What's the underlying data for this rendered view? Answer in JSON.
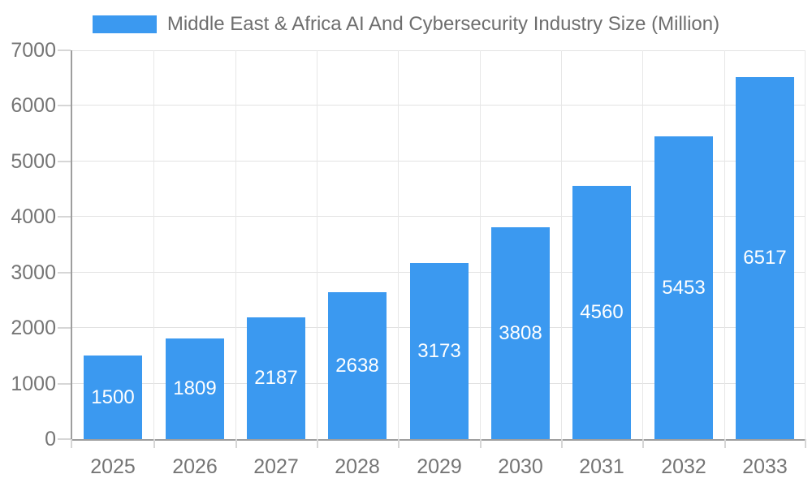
{
  "chart_data": {
    "type": "bar",
    "title": "Middle East & Africa AI And Cybersecurity Industry Size (Million)",
    "legend": {
      "position": "top",
      "entries": [
        "Middle East & Africa AI And Cybersecurity Industry Size (Million)"
      ]
    },
    "categories": [
      "2025",
      "2026",
      "2027",
      "2028",
      "2029",
      "2030",
      "2031",
      "2032",
      "2033"
    ],
    "series": [
      {
        "name": "Middle East & Africa AI And Cybersecurity Industry Size (Million)",
        "values": [
          1500,
          1809,
          2187,
          2638,
          3173,
          3808,
          4560,
          5453,
          6517
        ]
      }
    ],
    "bar_labels": [
      "1500",
      "1809",
      "2187",
      "2638",
      "3173",
      "3808",
      "4560",
      "5453",
      "6517"
    ],
    "xlabel": "",
    "ylabel": "",
    "ylim": [
      0,
      7000
    ],
    "y_ticks": [
      0,
      1000,
      2000,
      3000,
      4000,
      5000,
      6000,
      7000
    ],
    "y_tick_labels": [
      "0",
      "1000",
      "2000",
      "3000",
      "4000",
      "5000",
      "6000",
      "7000"
    ],
    "grid": true,
    "colors": {
      "bar": "#3b99f0",
      "bar_label": "#ffffff",
      "axis_line": "#9e9e9e",
      "grid_line": "#e2e2e2",
      "tick_mark": "#d6d6d6",
      "axis_text": "#757575",
      "title_text": "#6e6e6e",
      "background": "#ffffff"
    }
  }
}
